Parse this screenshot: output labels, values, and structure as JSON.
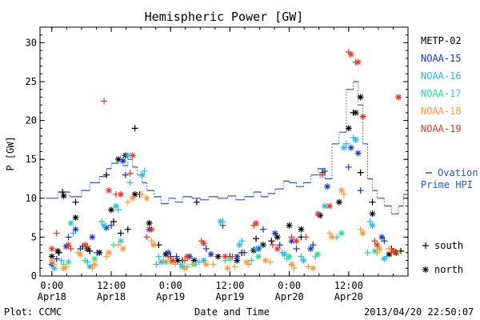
{
  "chart_data": {
    "type": "scatter",
    "title": "Hemispheric Power [GW]",
    "ylabel": "P [GW]",
    "xlabel": "Date and Time",
    "ylim": [
      0,
      32
    ],
    "yticks": [
      0,
      5,
      10,
      15,
      20,
      25,
      30
    ],
    "xlim": [
      -0.1,
      3.0
    ],
    "xticks": [
      {
        "x": 0.0,
        "time": "0:00",
        "date": "Apr18"
      },
      {
        "x": 0.5,
        "time": "12:00",
        "date": "Apr18"
      },
      {
        "x": 1.0,
        "time": "0:00",
        "date": "Apr19"
      },
      {
        "x": 1.5,
        "time": "12:00",
        "date": "Apr19"
      },
      {
        "x": 2.0,
        "time": "0:00",
        "date": "Apr20"
      },
      {
        "x": 2.5,
        "time": "12:00",
        "date": "Apr20"
      }
    ],
    "legend_placement": "right",
    "marker_key": {
      "south": "south",
      "north": "north"
    },
    "ovation_label": [
      "Ovation",
      "Prime HPI"
    ],
    "ovation_color": "#2255cc",
    "ovation": [
      [
        -0.05,
        10.0
      ],
      [
        0.05,
        10.8
      ],
      [
        0.15,
        10.2
      ],
      [
        0.25,
        11.0
      ],
      [
        0.32,
        12.0
      ],
      [
        0.4,
        12.8
      ],
      [
        0.46,
        13.8
      ],
      [
        0.5,
        14.5
      ],
      [
        0.56,
        15.0
      ],
      [
        0.6,
        14.2
      ],
      [
        0.64,
        15.0
      ],
      [
        0.68,
        14.0
      ],
      [
        0.72,
        13.0
      ],
      [
        0.76,
        12.0
      ],
      [
        0.8,
        11.0
      ],
      [
        0.86,
        10.2
      ],
      [
        0.92,
        9.3
      ],
      [
        0.98,
        10.0
      ],
      [
        1.04,
        9.5
      ],
      [
        1.1,
        10.2
      ],
      [
        1.18,
        10.0
      ],
      [
        1.25,
        9.8
      ],
      [
        1.32,
        10.2
      ],
      [
        1.4,
        10.0
      ],
      [
        1.48,
        10.3
      ],
      [
        1.55,
        9.8
      ],
      [
        1.62,
        10.2
      ],
      [
        1.7,
        10.8
      ],
      [
        1.76,
        10.2
      ],
      [
        1.82,
        10.6
      ],
      [
        1.88,
        11.2
      ],
      [
        1.95,
        12.2
      ],
      [
        2.0,
        12.0
      ],
      [
        2.06,
        11.5
      ],
      [
        2.12,
        12.0
      ],
      [
        2.18,
        13.0
      ],
      [
        2.24,
        13.8
      ],
      [
        2.3,
        12.5
      ],
      [
        2.36,
        17.0
      ],
      [
        2.42,
        18.5
      ],
      [
        2.48,
        24.0
      ],
      [
        2.54,
        25.0
      ],
      [
        2.58,
        22.0
      ],
      [
        2.62,
        17.0
      ],
      [
        2.66,
        12.5
      ],
      [
        2.7,
        11.0
      ],
      [
        2.74,
        10.0
      ],
      [
        2.8,
        9.0
      ],
      [
        2.86,
        8.0
      ],
      [
        2.92,
        9.0
      ],
      [
        2.96,
        10.5
      ]
    ],
    "series": [
      {
        "name": "METP-02",
        "color": "#000000",
        "south": [
          [
            0.06,
            3.0
          ],
          [
            0.09,
            10.8
          ],
          [
            0.2,
            9.5
          ],
          [
            0.26,
            3.8
          ],
          [
            0.32,
            3.2
          ],
          [
            0.46,
            13.0
          ],
          [
            0.52,
            7.0
          ],
          [
            0.58,
            5.5
          ],
          [
            0.64,
            6.0
          ],
          [
            0.7,
            19.0
          ],
          [
            0.74,
            10.5
          ],
          [
            0.9,
            4.0
          ],
          [
            1.0,
            2.5
          ],
          [
            1.1,
            2.0
          ],
          [
            1.22,
            9.5
          ],
          [
            1.5,
            2.5
          ],
          [
            1.6,
            3.0
          ],
          [
            1.72,
            4.8
          ],
          [
            1.85,
            4.5
          ],
          [
            2.1,
            5.0
          ],
          [
            2.28,
            13.3
          ],
          [
            2.54,
            21.0
          ],
          [
            2.6,
            13.3
          ],
          [
            2.7,
            9.5
          ],
          [
            2.86,
            3.5
          ],
          [
            2.94,
            3.2
          ]
        ],
        "north": [
          [
            0.0,
            2.5
          ],
          [
            0.05,
            3.2
          ],
          [
            0.1,
            10.3
          ],
          [
            0.2,
            7.5
          ],
          [
            0.3,
            3.5
          ],
          [
            0.4,
            3.0
          ],
          [
            0.5,
            8.5
          ],
          [
            0.56,
            15.0
          ],
          [
            0.62,
            15.5
          ],
          [
            0.7,
            10.5
          ],
          [
            0.82,
            6.8
          ],
          [
            0.96,
            2.8
          ],
          [
            1.06,
            2.0
          ],
          [
            1.2,
            2.0
          ],
          [
            1.4,
            2.5
          ],
          [
            1.56,
            2.0
          ],
          [
            1.7,
            3.3
          ],
          [
            1.78,
            4.0
          ],
          [
            1.9,
            5.0
          ],
          [
            2.0,
            6.5
          ],
          [
            2.1,
            6.0
          ],
          [
            2.26,
            7.8
          ],
          [
            2.42,
            9.5
          ],
          [
            2.5,
            19.0
          ],
          [
            2.56,
            21.0
          ],
          [
            2.6,
            23.0
          ],
          [
            2.7,
            8.0
          ],
          [
            2.84,
            2.8
          ],
          [
            2.9,
            3.0
          ]
        ]
      },
      {
        "name": "NOAA-15",
        "color": "#1133cc",
        "south": [
          [
            0.04,
            2.2
          ],
          [
            0.14,
            5.0
          ],
          [
            0.24,
            3.5
          ],
          [
            0.38,
            3.0
          ],
          [
            0.5,
            6.5
          ],
          [
            0.62,
            13.0
          ],
          [
            0.86,
            4.0
          ],
          [
            1.05,
            2.5
          ],
          [
            1.3,
            3.5
          ],
          [
            1.44,
            6.5
          ],
          [
            1.62,
            3.0
          ],
          [
            1.78,
            6.0
          ],
          [
            1.92,
            4.0
          ],
          [
            2.06,
            3.5
          ],
          [
            2.2,
            4.0
          ],
          [
            2.3,
            13.5
          ],
          [
            2.5,
            14.0
          ],
          [
            2.6,
            11.0
          ],
          [
            2.8,
            4.5
          ]
        ],
        "north": [
          [
            0.0,
            1.5
          ],
          [
            0.12,
            3.8
          ],
          [
            0.2,
            6.0
          ],
          [
            0.34,
            5.0
          ],
          [
            0.46,
            6.2
          ],
          [
            0.6,
            14.8
          ],
          [
            0.82,
            6.0
          ],
          [
            0.98,
            3.0
          ],
          [
            1.16,
            2.5
          ],
          [
            1.34,
            2.8
          ],
          [
            1.56,
            2.5
          ],
          [
            1.74,
            3.5
          ],
          [
            1.88,
            5.5
          ],
          [
            2.02,
            4.5
          ],
          [
            2.18,
            3.5
          ],
          [
            2.32,
            11.5
          ],
          [
            2.52,
            16.5
          ],
          [
            2.58,
            15.8
          ],
          [
            2.78,
            5.0
          ]
        ]
      },
      {
        "name": "NOAA-16",
        "color": "#22bbee",
        "south": [
          [
            0.08,
            2.0
          ],
          [
            0.18,
            5.5
          ],
          [
            0.3,
            1.8
          ],
          [
            0.42,
            7.0
          ],
          [
            0.56,
            8.5
          ],
          [
            0.66,
            12.0
          ],
          [
            0.78,
            13.5
          ],
          [
            0.9,
            2.5
          ],
          [
            1.08,
            1.5
          ],
          [
            1.24,
            1.8
          ],
          [
            1.44,
            7.0
          ],
          [
            1.6,
            4.5
          ],
          [
            1.76,
            3.8
          ],
          [
            1.94,
            3.0
          ],
          [
            2.1,
            2.5
          ],
          [
            2.26,
            13.0
          ],
          [
            2.48,
            17.0
          ],
          [
            2.54,
            17.8
          ],
          [
            2.68,
            7.0
          ],
          [
            2.82,
            2.5
          ]
        ],
        "north": [
          [
            0.02,
            1.0
          ],
          [
            0.16,
            6.8
          ],
          [
            0.32,
            1.2
          ],
          [
            0.44,
            6.5
          ],
          [
            0.54,
            9.0
          ],
          [
            0.64,
            15.5
          ],
          [
            0.76,
            13.0
          ],
          [
            0.92,
            1.8
          ],
          [
            1.1,
            1.2
          ],
          [
            1.28,
            2.0
          ],
          [
            1.42,
            7.0
          ],
          [
            1.58,
            4.0
          ],
          [
            1.72,
            3.5
          ],
          [
            1.96,
            2.8
          ],
          [
            2.12,
            2.0
          ],
          [
            2.3,
            9.0
          ],
          [
            2.46,
            16.5
          ],
          [
            2.56,
            17.5
          ],
          [
            2.7,
            6.5
          ],
          [
            2.8,
            2.2
          ]
        ]
      },
      {
        "name": "NOAA-17",
        "color": "#22dd99",
        "south": [
          [
            0.1,
            1.5
          ],
          [
            0.28,
            2.0
          ],
          [
            0.52,
            4.0
          ],
          [
            0.88,
            1.5
          ],
          [
            1.14,
            1.2
          ],
          [
            1.46,
            2.0
          ],
          [
            1.68,
            2.0
          ],
          [
            1.98,
            2.2
          ],
          [
            2.22,
            2.5
          ],
          [
            2.4,
            5.0
          ],
          [
            2.66,
            3.0
          ]
        ],
        "north": [
          [
            0.14,
            1.8
          ],
          [
            0.36,
            2.2
          ],
          [
            0.58,
            4.5
          ],
          [
            0.96,
            1.8
          ],
          [
            1.2,
            1.5
          ],
          [
            1.5,
            2.2
          ],
          [
            1.74,
            2.5
          ],
          [
            2.0,
            2.5
          ],
          [
            2.24,
            2.8
          ],
          [
            2.44,
            5.5
          ],
          [
            2.72,
            3.2
          ]
        ]
      },
      {
        "name": "NOAA-18",
        "color": "#ff9933",
        "south": [
          [
            0.02,
            1.5
          ],
          [
            0.12,
            1.2
          ],
          [
            0.22,
            3.0
          ],
          [
            0.34,
            1.0
          ],
          [
            0.46,
            2.5
          ],
          [
            0.56,
            4.0
          ],
          [
            0.64,
            9.5
          ],
          [
            0.76,
            10.5
          ],
          [
            0.84,
            4.5
          ],
          [
            0.94,
            2.0
          ],
          [
            1.04,
            1.5
          ],
          [
            1.18,
            1.5
          ],
          [
            1.36,
            1.5
          ],
          [
            1.54,
            1.2
          ],
          [
            1.66,
            1.5
          ],
          [
            1.84,
            1.8
          ],
          [
            2.04,
            1.0
          ],
          [
            2.16,
            1.2
          ],
          [
            2.34,
            5.5
          ],
          [
            2.46,
            10.5
          ],
          [
            2.6,
            6.0
          ],
          [
            2.74,
            3.0
          ],
          [
            2.84,
            3.5
          ],
          [
            2.92,
            3.0
          ]
        ],
        "north": [
          [
            0.0,
            2.0
          ],
          [
            0.1,
            1.0
          ],
          [
            0.24,
            2.8
          ],
          [
            0.36,
            1.5
          ],
          [
            0.48,
            3.0
          ],
          [
            0.6,
            3.5
          ],
          [
            0.68,
            10.0
          ],
          [
            0.8,
            10.0
          ],
          [
            0.86,
            4.0
          ],
          [
            1.0,
            1.8
          ],
          [
            1.12,
            1.0
          ],
          [
            1.3,
            1.5
          ],
          [
            1.48,
            1.0
          ],
          [
            1.64,
            1.8
          ],
          [
            1.8,
            2.0
          ],
          [
            2.02,
            1.5
          ],
          [
            2.2,
            1.0
          ],
          [
            2.36,
            5.0
          ],
          [
            2.44,
            11.0
          ],
          [
            2.62,
            5.5
          ],
          [
            2.76,
            3.5
          ],
          [
            2.88,
            3.2
          ]
        ]
      },
      {
        "name": "NOAA-19",
        "color": "#ee3322",
        "south": [
          [
            0.04,
            5.5
          ],
          [
            0.16,
            3.5
          ],
          [
            0.3,
            3.8
          ],
          [
            0.44,
            22.5
          ],
          [
            0.54,
            10.5
          ],
          [
            0.66,
            13.2
          ],
          [
            0.8,
            5.0
          ],
          [
            0.98,
            2.5
          ],
          [
            1.12,
            2.0
          ],
          [
            1.26,
            4.5
          ],
          [
            1.52,
            2.5
          ],
          [
            1.7,
            6.5
          ],
          [
            1.86,
            4.0
          ],
          [
            2.02,
            5.0
          ],
          [
            2.14,
            5.0
          ],
          [
            2.28,
            13.0
          ],
          [
            2.5,
            28.8
          ],
          [
            2.56,
            27.5
          ],
          [
            2.62,
            20.5
          ],
          [
            2.72,
            4.5
          ],
          [
            2.86,
            3.0
          ],
          [
            2.92,
            23.0
          ]
        ],
        "north": [
          [
            0.0,
            3.5
          ],
          [
            0.14,
            4.0
          ],
          [
            0.28,
            4.0
          ],
          [
            0.48,
            11.0
          ],
          [
            0.58,
            10.5
          ],
          [
            0.68,
            15.5
          ],
          [
            0.84,
            6.0
          ],
          [
            1.02,
            2.0
          ],
          [
            1.14,
            2.5
          ],
          [
            1.28,
            4.2
          ],
          [
            1.46,
            2.5
          ],
          [
            1.72,
            6.8
          ],
          [
            1.9,
            3.5
          ],
          [
            2.06,
            4.5
          ],
          [
            2.24,
            8.0
          ],
          [
            2.34,
            9.0
          ],
          [
            2.52,
            28.5
          ],
          [
            2.58,
            27.5
          ],
          [
            2.62,
            20.5
          ],
          [
            2.74,
            4.0
          ],
          [
            2.88,
            3.2
          ],
          [
            2.92,
            23.0
          ]
        ]
      }
    ]
  },
  "footer": {
    "plot_credit": "Plot: CCMC",
    "timestamp": "2013/04/20 22:50:07"
  }
}
